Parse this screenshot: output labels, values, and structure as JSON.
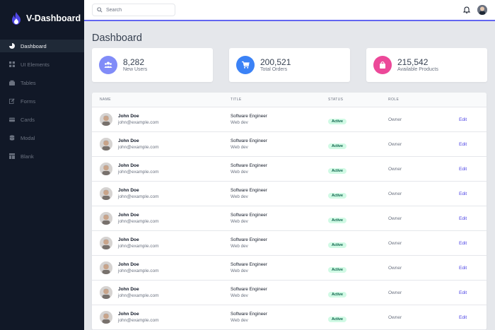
{
  "brand": {
    "name": "V-Dashboard"
  },
  "sidebar": {
    "items": [
      {
        "label": "Dashboard",
        "icon": "pie-chart-icon"
      },
      {
        "label": "UI Elements",
        "icon": "grid-icon"
      },
      {
        "label": "Tables",
        "icon": "table-icon"
      },
      {
        "label": "Forms",
        "icon": "edit-icon"
      },
      {
        "label": "Cards",
        "icon": "card-icon"
      },
      {
        "label": "Modal",
        "icon": "database-icon"
      },
      {
        "label": "Blank",
        "icon": "layout-icon"
      }
    ]
  },
  "header": {
    "search_placeholder": "Search"
  },
  "page": {
    "title": "Dashboard"
  },
  "stats": [
    {
      "value": "8,282",
      "label": "New Users",
      "color": "#818cf8"
    },
    {
      "value": "200,521",
      "label": "Total Orders",
      "color": "#3b82f6"
    },
    {
      "value": "215,542",
      "label": "Available Products",
      "color": "#ec4899"
    }
  ],
  "table": {
    "headers": {
      "name": "NAME",
      "title": "TITLE",
      "status": "STATUS",
      "role": "ROLE"
    },
    "rows": [
      {
        "name": "John Doe",
        "email": "john@example.com",
        "title": "Software Engineer",
        "dept": "Web dev",
        "status": "Active",
        "role": "Owner",
        "action": "Edit"
      },
      {
        "name": "John Doe",
        "email": "john@example.com",
        "title": "Software Engineer",
        "dept": "Web dev",
        "status": "Active",
        "role": "Owner",
        "action": "Edit"
      },
      {
        "name": "John Doe",
        "email": "john@example.com",
        "title": "Software Engineer",
        "dept": "Web dev",
        "status": "Active",
        "role": "Owner",
        "action": "Edit"
      },
      {
        "name": "John Doe",
        "email": "john@example.com",
        "title": "Software Engineer",
        "dept": "Web dev",
        "status": "Active",
        "role": "Owner",
        "action": "Edit"
      },
      {
        "name": "John Doe",
        "email": "john@example.com",
        "title": "Software Engineer",
        "dept": "Web dev",
        "status": "Active",
        "role": "Owner",
        "action": "Edit"
      },
      {
        "name": "John Doe",
        "email": "john@example.com",
        "title": "Software Engineer",
        "dept": "Web dev",
        "status": "Active",
        "role": "Owner",
        "action": "Edit"
      },
      {
        "name": "John Doe",
        "email": "john@example.com",
        "title": "Software Engineer",
        "dept": "Web dev",
        "status": "Active",
        "role": "Owner",
        "action": "Edit"
      },
      {
        "name": "John Doe",
        "email": "john@example.com",
        "title": "Software Engineer",
        "dept": "Web dev",
        "status": "Active",
        "role": "Owner",
        "action": "Edit"
      },
      {
        "name": "John Doe",
        "email": "john@example.com",
        "title": "Software Engineer",
        "dept": "Web dev",
        "status": "Active",
        "role": "Owner",
        "action": "Edit"
      }
    ]
  }
}
